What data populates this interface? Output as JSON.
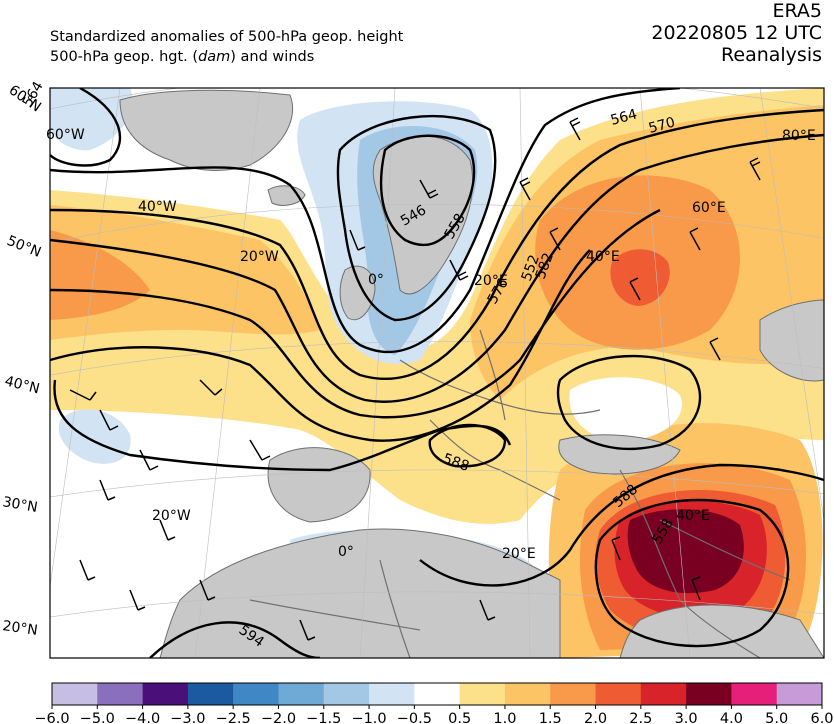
{
  "header": {
    "line1": "Standardized anomalies of 500-hPa geop. height",
    "line2_pre": "500-hPa geop. hgt. (",
    "line2_em": "dam",
    "line2_post": ") and winds",
    "source": "ERA5",
    "datetime": "20220805 12 UTC",
    "product": "Reanalysis"
  },
  "map": {
    "lat_labels": [
      "60°N",
      "50°N",
      "40°N",
      "30°N",
      "20°N"
    ],
    "lon_labels": [
      "60°W",
      "40°W",
      "20°W",
      "0°",
      "20°E",
      "40°E",
      "60°E",
      "80°E",
      "20°W",
      "0°",
      "20°E",
      "40°E"
    ],
    "contour_labels": [
      "546",
      "552",
      "558",
      "564",
      "570",
      "576",
      "582",
      "588",
      "588",
      "594",
      "564",
      "558"
    ],
    "colors": {
      "land": "#c8c8c8",
      "ocean": "#ffffff",
      "border": "#707070",
      "contour": "#000000"
    }
  },
  "colorbar": {
    "ticks": [
      "−6.0",
      "−5.0",
      "−4.0",
      "−3.0",
      "−2.5",
      "−2.0",
      "−1.5",
      "−1.0",
      "−0.5",
      "0.5",
      "1.0",
      "1.5",
      "2.0",
      "2.5",
      "3.0",
      "4.0",
      "5.0",
      "6.0"
    ],
    "colors": [
      "#c7bfe3",
      "#8b6fbf",
      "#4b0f7a",
      "#1b5aa0",
      "#3f88c5",
      "#6fa9d6",
      "#a3c8e6",
      "#d2e3f3",
      "#ffffff",
      "#fde08a",
      "#fcc465",
      "#f89a4a",
      "#ef5b32",
      "#d8232a",
      "#7a0021",
      "#e51f7a",
      "#c79ad8"
    ]
  }
}
